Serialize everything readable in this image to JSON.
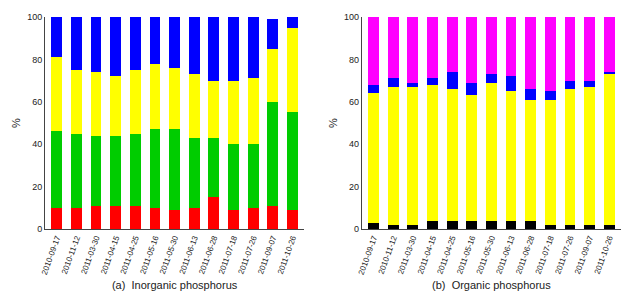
{
  "chart_data": [
    {
      "type": "bar",
      "stacked": true,
      "grid": false,
      "xlabel": "(a)  Inorganic phosphorus",
      "ylabel": "%",
      "categories": [
        "2010-09-17",
        "2010-11-12",
        "2011-03-30",
        "2011-04-15",
        "2011-04-25",
        "2011-05-16",
        "2011-05-30",
        "2011-06-13",
        "2011-06-28",
        "2011-07-18",
        "2011-07-26",
        "2011-09-07",
        "2011-10-26"
      ],
      "series": [
        {
          "color": "#ff0000",
          "values": [
            10,
            10,
            11,
            11,
            11,
            10,
            9,
            10,
            15,
            9,
            10,
            11,
            9
          ]
        },
        {
          "color": "#00cc00",
          "values": [
            36,
            35,
            33,
            33,
            34,
            37,
            38,
            33,
            28,
            31,
            30,
            49,
            46
          ]
        },
        {
          "color": "#ffff00",
          "values": [
            35,
            30,
            30,
            28,
            30,
            31,
            29,
            30,
            27,
            30,
            31,
            25,
            40
          ]
        },
        {
          "color": "#0000ff",
          "values": [
            19,
            25,
            26,
            28,
            25,
            22,
            24,
            27,
            30,
            30,
            29,
            14,
            5
          ]
        }
      ],
      "ylim": [
        0,
        100
      ],
      "yticks": [
        0,
        20,
        40,
        60,
        80,
        100
      ]
    },
    {
      "type": "bar",
      "stacked": true,
      "grid": false,
      "xlabel": "(b)  Organic phosphorus",
      "ylabel": "%",
      "categories": [
        "2010-09-17",
        "2010-11-12",
        "2011-03-30",
        "2011-04-15",
        "2011-04-25",
        "2011-05-16",
        "2011-05-30",
        "2011-06-13",
        "2011-06-28",
        "2011-07-18",
        "2011-07-26",
        "2011-09-07",
        "2011-10-26"
      ],
      "series": [
        {
          "color": "#000000",
          "values": [
            3,
            2,
            2,
            4,
            4,
            4,
            4,
            4,
            4,
            2,
            2,
            2,
            2
          ]
        },
        {
          "color": "#ffff00",
          "values": [
            61,
            65,
            65,
            64,
            62,
            59,
            65,
            61,
            57,
            59,
            64,
            65,
            71
          ]
        },
        {
          "color": "#0000ff",
          "values": [
            4,
            4,
            2,
            3,
            8,
            6,
            4,
            7,
            5,
            4,
            4,
            3,
            1
          ]
        },
        {
          "color": "#ff00ff",
          "values": [
            32,
            29,
            31,
            29,
            26,
            31,
            27,
            28,
            34,
            35,
            30,
            30,
            26
          ]
        }
      ],
      "ylim": [
        0,
        100
      ],
      "yticks": [
        0,
        20,
        40,
        60,
        80,
        100
      ]
    }
  ]
}
